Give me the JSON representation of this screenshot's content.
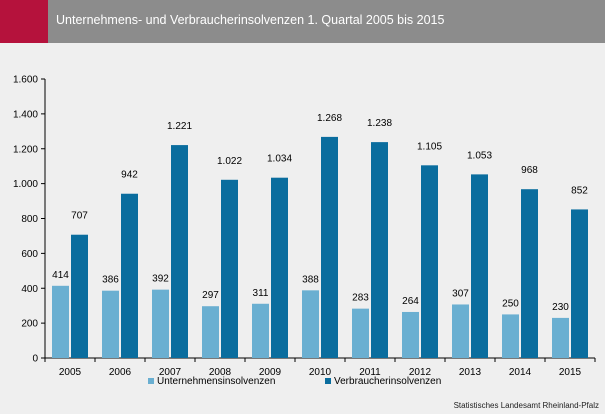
{
  "header": {
    "title": "Unternehmens- und Verbraucherinsolvenzen 1. Quartal 2005 bis 2015"
  },
  "source": "Statistisches Landesamt Rheinland-Pfalz",
  "colors": {
    "header_bg": "#8c8c8c",
    "accent": "#b5123c",
    "series_unternehmen": "#6aafd1",
    "series_verbraucher": "#0a6d9e"
  },
  "chart_data": {
    "type": "bar",
    "categories": [
      "2005",
      "2006",
      "2007",
      "2008",
      "2009",
      "2010",
      "2011",
      "2012",
      "2013",
      "2014",
      "2015"
    ],
    "series": [
      {
        "name": "Unternehmensinsolvenzen",
        "values": [
          414,
          386,
          392,
          297,
          311,
          388,
          283,
          264,
          307,
          250,
          230
        ],
        "labels": [
          "414",
          "386",
          "392",
          "297",
          "311",
          "388",
          "283",
          "264",
          "307",
          "250",
          "230"
        ]
      },
      {
        "name": "Verbraucherinsolvenzen",
        "values": [
          707,
          942,
          1221,
          1022,
          1034,
          1268,
          1238,
          1105,
          1053,
          968,
          852
        ],
        "labels": [
          "707",
          "942",
          "1.221",
          "1.022",
          "1.034",
          "1.268",
          "1.238",
          "1.105",
          "1.053",
          "968",
          "852"
        ]
      }
    ],
    "ylim": [
      0,
      1600
    ],
    "yticks": [
      0,
      200,
      400,
      600,
      800,
      1000,
      1200,
      1400,
      1600
    ],
    "ytick_labels": [
      "0",
      "200",
      "400",
      "600",
      "800",
      "1.000",
      "1.200",
      "1.400",
      "1.600"
    ],
    "grid": false,
    "legend_position": "bottom"
  }
}
